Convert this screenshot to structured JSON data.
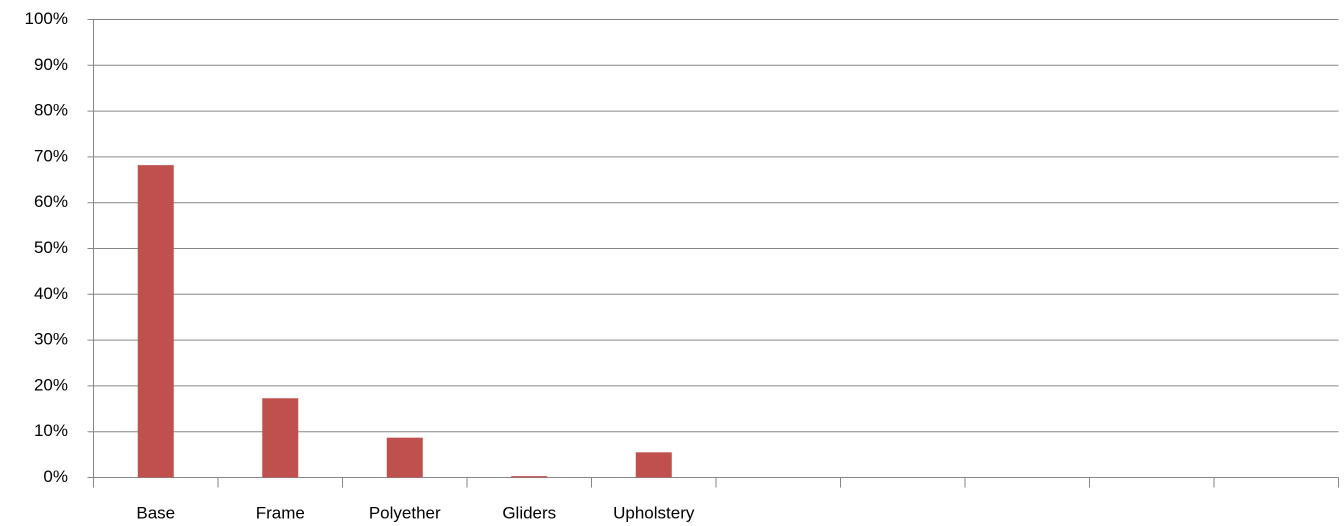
{
  "chart_data": {
    "type": "bar",
    "categories": [
      "Base",
      "Frame",
      "Polyether",
      "Gliders",
      "Upholstery",
      null,
      null,
      null,
      null,
      null
    ],
    "values": [
      68.2,
      17.3,
      8.7,
      0.3,
      5.5,
      null,
      null,
      null,
      null,
      null
    ],
    "color": "#c0504d",
    "ylim": [
      0,
      100
    ],
    "yticks": [
      {
        "value": 0,
        "label": "0%"
      },
      {
        "value": 10,
        "label": "10%"
      },
      {
        "value": 20,
        "label": "20%"
      },
      {
        "value": 30,
        "label": "30%"
      },
      {
        "value": 40,
        "label": "40%"
      },
      {
        "value": 50,
        "label": "50%"
      },
      {
        "value": 60,
        "label": "60%"
      },
      {
        "value": 70,
        "label": "70%"
      },
      {
        "value": 80,
        "label": "80%"
      },
      {
        "value": 90,
        "label": "90%"
      },
      {
        "value": 100,
        "label": "100%"
      }
    ],
    "grid": true
  }
}
